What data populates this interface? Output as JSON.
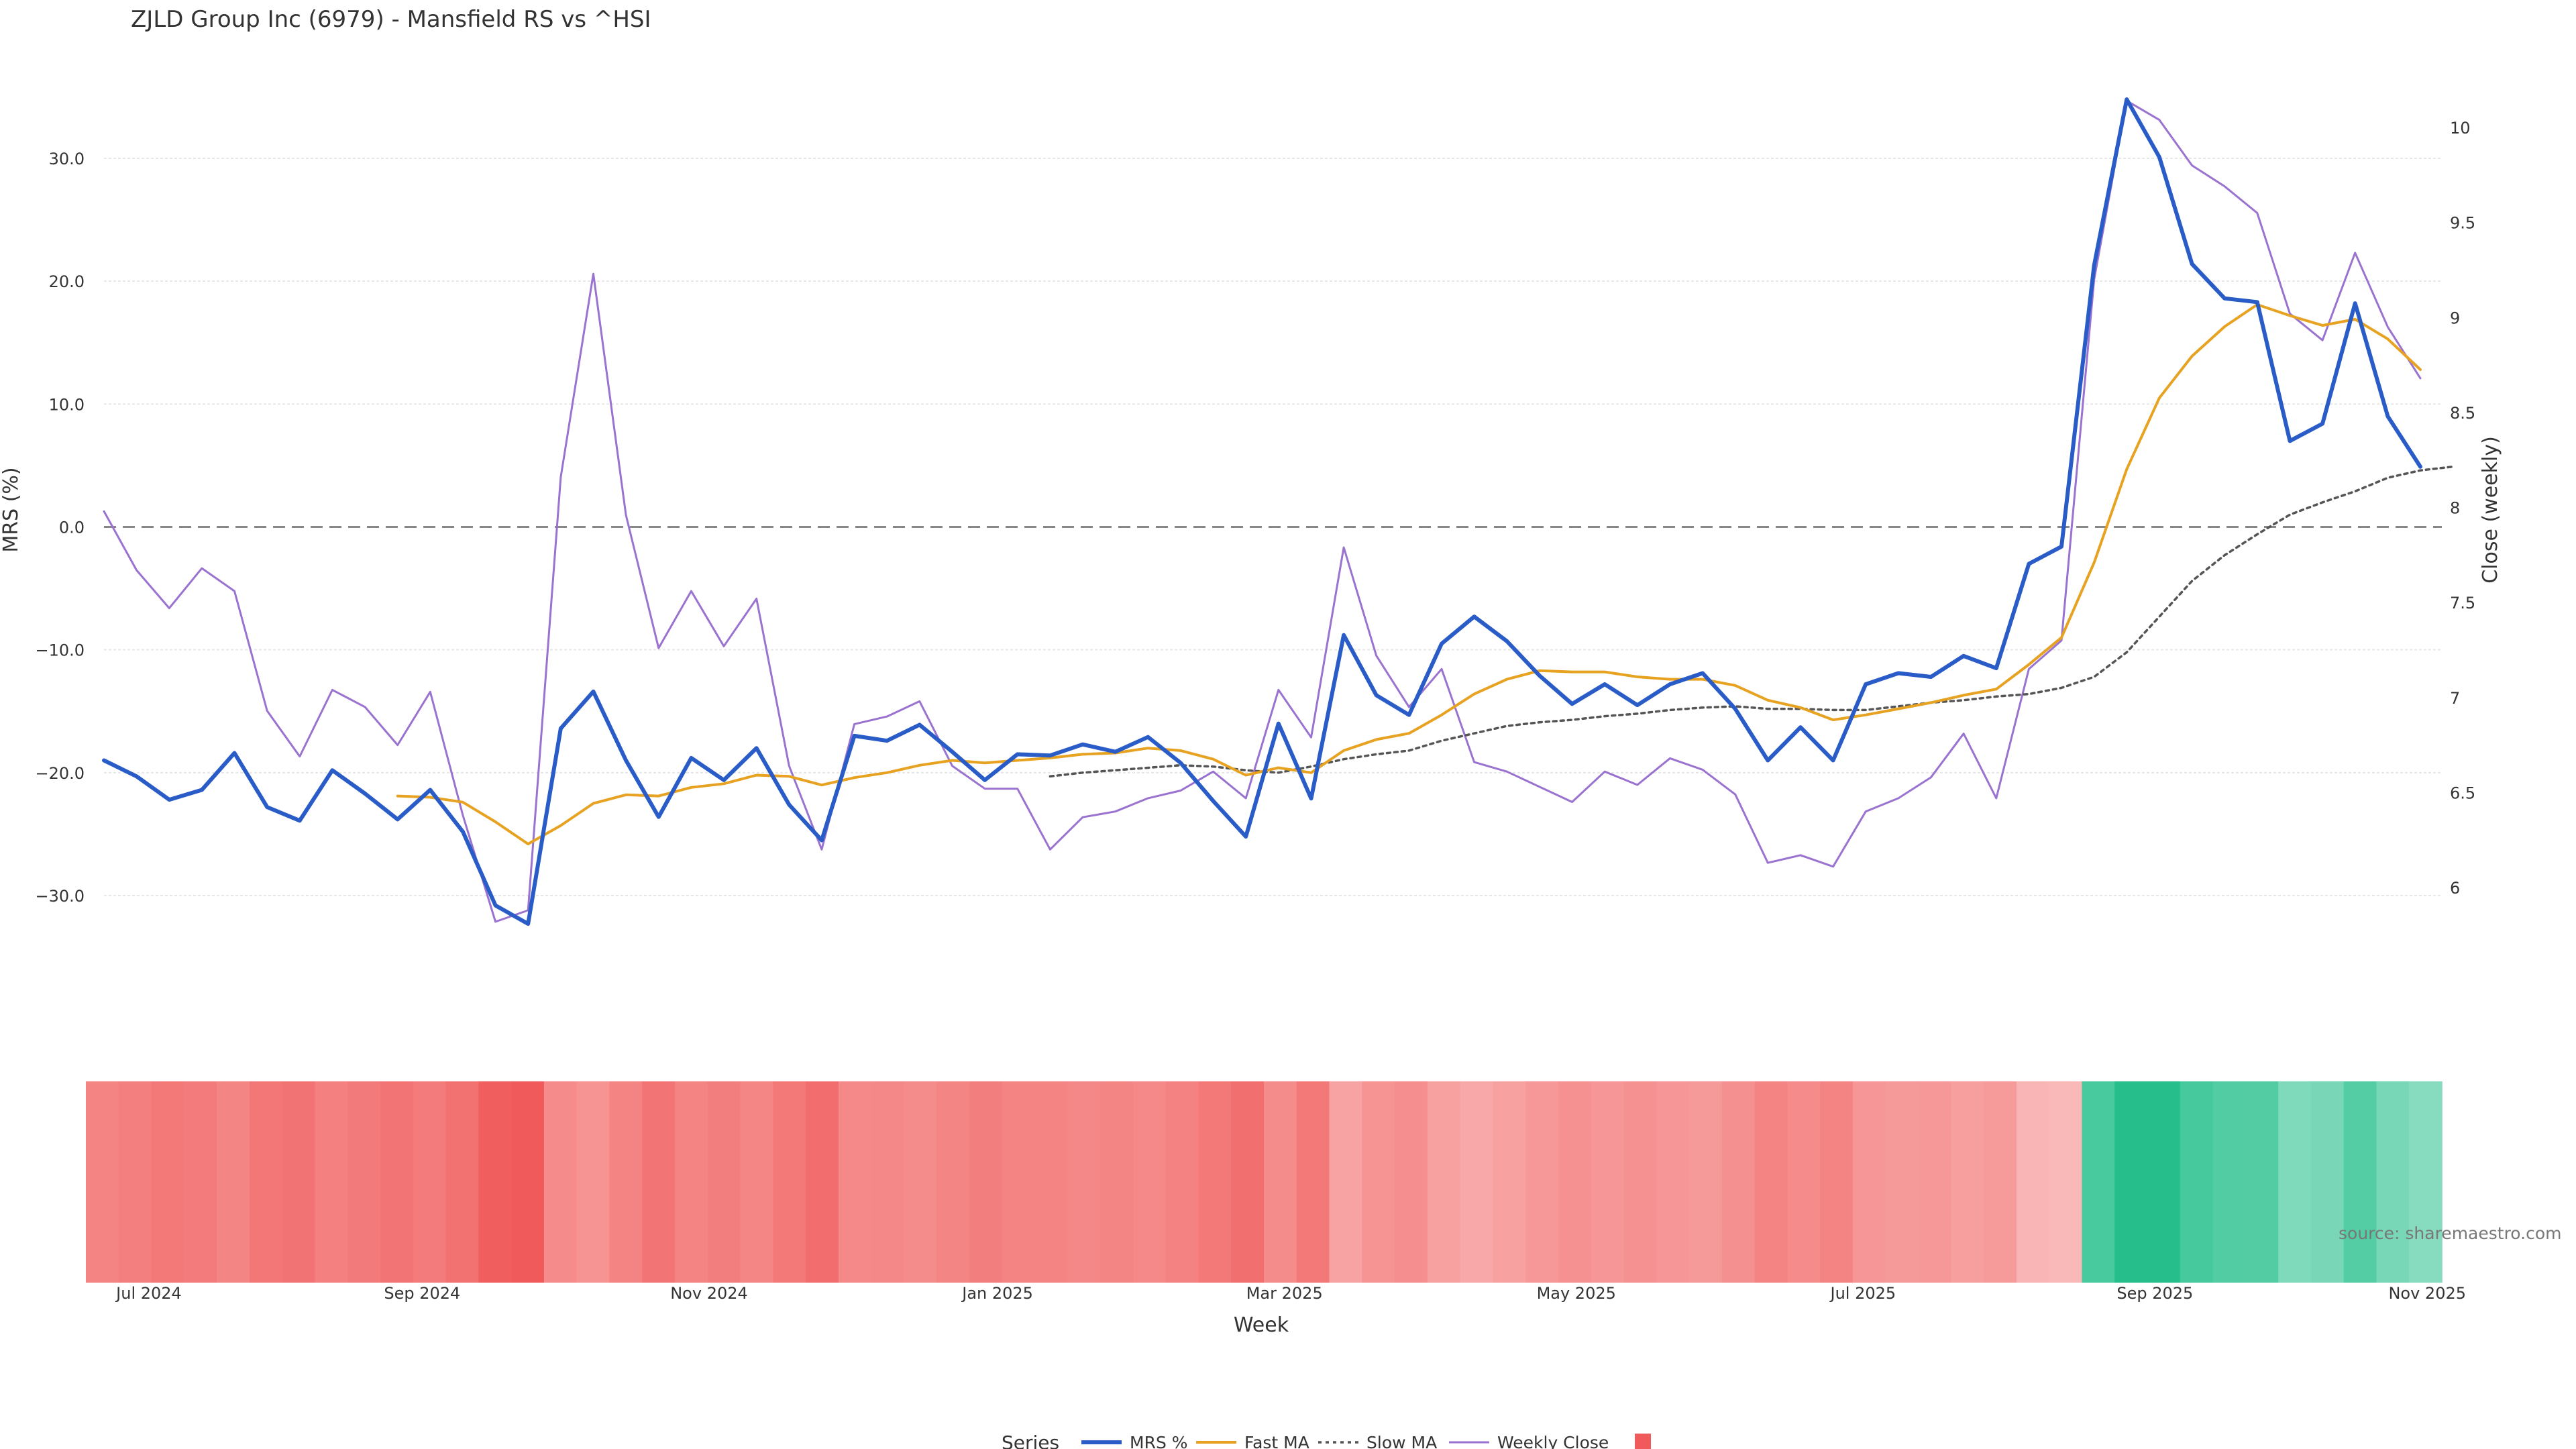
{
  "chart_data": {
    "type": "line",
    "title": "ZJLD Group Inc (6979) - Mansfield RS vs ^HSI",
    "source": "source: sharemaestro.com",
    "xlabel": "Week",
    "ylabel_left": "MRS (%)",
    "ylabel_right": "Close (weekly)",
    "x_ticks": [
      "Jul 2024",
      "Sep 2024",
      "Nov 2024",
      "Jan 2025",
      "Mar 2025",
      "May 2025",
      "Jul 2025",
      "Sep 2025",
      "Nov 2025"
    ],
    "x_tick_weeks": [
      1.35,
      10.2,
      18.9,
      27.65,
      36.35,
      45.2,
      53.9,
      62.75,
      71.45
    ],
    "x_range": [
      0,
      71.45
    ],
    "y_left_ticks": [
      "30.0",
      "20.0",
      "10.0",
      "0.0",
      "−10.0",
      "−20.0",
      "−30.0"
    ],
    "y_left_values": [
      30,
      20,
      10,
      0,
      -10,
      -20,
      -30
    ],
    "y_left_range": [
      -38.5,
      38.5
    ],
    "y_right_ticks": [
      "10",
      "9.5",
      "9",
      "8.5",
      "8",
      "7.5",
      "7",
      "6.5",
      "6"
    ],
    "y_right_values": [
      10,
      9.5,
      9,
      8.5,
      8,
      7.5,
      7,
      6.5,
      6
    ],
    "grid": true,
    "zero_line": true,
    "legend_placement": "bottom-center",
    "legend_title": "Series",
    "series": [
      {
        "name": "MRS %",
        "axis": "left",
        "color": "#2a5cc8",
        "style": "solid",
        "start": 0,
        "values": [
          -19.0,
          -20.3,
          -22.2,
          -21.4,
          -18.4,
          -22.8,
          -23.9,
          -19.8,
          -21.7,
          -23.8,
          -21.4,
          -24.8,
          -30.8,
          -32.3,
          -16.4,
          -13.4,
          -19.0,
          -23.6,
          -18.8,
          -20.6,
          -18.0,
          -22.6,
          -25.5,
          -17.0,
          -17.4,
          -16.1,
          -18.3,
          -20.6,
          -18.5,
          -18.6,
          -17.7,
          -18.3,
          -17.1,
          -19.2,
          -22.3,
          -25.2,
          -16.0,
          -22.1,
          -8.8,
          -13.7,
          -15.3,
          -9.5,
          -7.3,
          -9.3,
          -12.1,
          -14.4,
          -12.8,
          -14.5,
          -12.8,
          -11.9,
          -14.8,
          -19.0,
          -16.3,
          -19.0,
          -12.8,
          -11.9,
          -12.2,
          -10.5,
          -11.5,
          -3.0,
          -1.6,
          21.3,
          34.8,
          30.1,
          21.4,
          18.6,
          18.3,
          7.0,
          8.4,
          18.2,
          9.0,
          4.9
        ]
      },
      {
        "name": "Fast MA",
        "axis": "left",
        "color": "#e6a220",
        "style": "solid",
        "start": 9,
        "values": [
          -21.9,
          -22.0,
          -22.4,
          -24.0,
          -25.8,
          -24.3,
          -22.5,
          -21.8,
          -21.9,
          -21.2,
          -20.9,
          -20.2,
          -20.3,
          -21.0,
          -20.4,
          -20.0,
          -19.4,
          -19.0,
          -19.2,
          -19.0,
          -18.8,
          -18.5,
          -18.4,
          -18.0,
          -18.2,
          -18.9,
          -20.2,
          -19.6,
          -20.0,
          -18.2,
          -17.3,
          -16.8,
          -15.3,
          -13.6,
          -12.4,
          -11.7,
          -11.8,
          -11.8,
          -12.2,
          -12.4,
          -12.4,
          -12.9,
          -14.1,
          -14.7,
          -15.7,
          -15.3,
          -14.8,
          -14.3,
          -13.7,
          -13.2,
          -11.2,
          -9.0,
          -2.9,
          4.7,
          10.5,
          13.9,
          16.3,
          18.1,
          17.2,
          16.4,
          16.9,
          15.3,
          12.8
        ]
      },
      {
        "name": "Slow MA",
        "axis": "left",
        "color": "#555555",
        "style": "dotted",
        "start": 29,
        "values": [
          -20.3,
          -20.0,
          -19.8,
          -19.6,
          -19.4,
          -19.5,
          -19.8,
          -20.0,
          -19.5,
          -18.9,
          -18.5,
          -18.2,
          -17.4,
          -16.8,
          -16.2,
          -15.9,
          -15.7,
          -15.4,
          -15.2,
          -14.9,
          -14.7,
          -14.6,
          -14.8,
          -14.8,
          -14.9,
          -14.9,
          -14.6,
          -14.3,
          -14.1,
          -13.8,
          -13.6,
          -13.1,
          -12.2,
          -10.2,
          -7.3,
          -4.4,
          -2.3,
          -0.6,
          1.0,
          2.0,
          2.9,
          4.0,
          4.6,
          4.9
        ]
      },
      {
        "name": "Weekly Close",
        "axis": "right",
        "color": "#9a72d0",
        "style": "solid",
        "start": 0,
        "values": [
          7.98,
          7.67,
          7.47,
          7.68,
          7.56,
          6.93,
          6.69,
          7.04,
          6.95,
          6.75,
          7.03,
          6.38,
          5.82,
          5.88,
          8.16,
          9.23,
          7.96,
          7.26,
          7.56,
          7.27,
          7.52,
          6.64,
          6.2,
          6.86,
          6.9,
          6.98,
          6.64,
          6.52,
          6.52,
          6.2,
          6.37,
          6.4,
          6.47,
          6.51,
          6.61,
          6.47,
          7.04,
          6.79,
          7.79,
          7.22,
          6.95,
          7.15,
          6.66,
          6.61,
          6.53,
          6.45,
          6.61,
          6.54,
          6.68,
          6.62,
          6.49,
          6.13,
          6.17,
          6.11,
          6.4,
          6.47,
          6.58,
          6.81,
          6.47,
          7.15,
          7.3,
          9.2,
          10.14,
          10.04,
          9.8,
          9.69,
          9.55,
          9.02,
          8.88,
          9.34,
          8.95,
          8.68
        ]
      }
    ],
    "heatmap": {
      "type": "heatmap",
      "values": [
        -19.0,
        -20.3,
        -22.2,
        -21.4,
        -18.4,
        -22.8,
        -23.9,
        -19.8,
        -21.7,
        -23.8,
        -21.4,
        -24.8,
        -30.8,
        -32.3,
        -16.4,
        -13.4,
        -19.0,
        -23.6,
        -18.8,
        -20.6,
        -18.0,
        -22.6,
        -25.5,
        -17.0,
        -17.4,
        -16.1,
        -18.3,
        -20.6,
        -18.5,
        -18.6,
        -17.7,
        -18.3,
        -17.1,
        -19.2,
        -22.3,
        -25.2,
        -16.0,
        -22.1,
        -8.8,
        -13.7,
        -15.3,
        -9.5,
        -7.3,
        -9.3,
        -12.1,
        -14.4,
        -12.8,
        -14.5,
        -12.8,
        -11.9,
        -14.8,
        -19.0,
        -16.3,
        -19.0,
        -12.8,
        -11.9,
        -12.2,
        -10.5,
        -11.5,
        -3.0,
        -1.6,
        21.3,
        34.8,
        30.1,
        21.4,
        18.6,
        18.3,
        7.0,
        8.4,
        18.2,
        9.0,
        4.9
      ],
      "negative_color": "#f05a5a",
      "positive_color": "#26bf8c"
    }
  }
}
